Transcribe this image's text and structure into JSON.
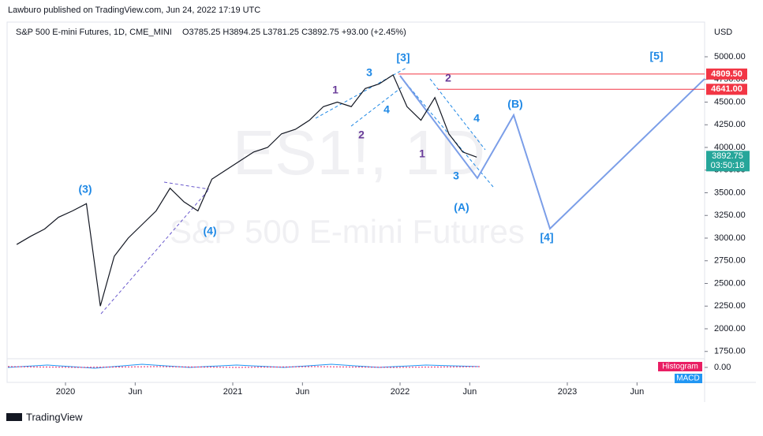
{
  "header": {
    "publisher": "Lawburo published on TradingView.com, Jun 24, 2022 17:19 UTC",
    "footer": "TradingView"
  },
  "chart_data": {
    "type": "line",
    "title": "S&P 500 E-mini Futures, 1D, CME_MINI",
    "ohlc_text": "O3785.25 H3894.25 L3781.25 C3892.75 +93.00 (+2.45%)",
    "watermark": [
      "ES1!, 1D",
      "S&P 500 E-mini Futures"
    ],
    "currency": "USD",
    "x": [
      "2019-09",
      "2019-10",
      "2019-11",
      "2019-12",
      "2020-01",
      "2020-02",
      "2020-03",
      "2020-04",
      "2020-05",
      "2020-06",
      "2020-07",
      "2020-08",
      "2020-09",
      "2020-10",
      "2020-11",
      "2020-12",
      "2021-01",
      "2021-02",
      "2021-03",
      "2021-04",
      "2021-05",
      "2021-06",
      "2021-07",
      "2021-08",
      "2021-09",
      "2021-10",
      "2021-11",
      "2021-12",
      "2022-01",
      "2022-02",
      "2022-03",
      "2022-04",
      "2022-05",
      "2022-06"
    ],
    "series": [
      {
        "name": "ES1!",
        "color": "#131722",
        "values": [
          2930,
          3020,
          3100,
          3230,
          3300,
          3380,
          2250,
          2800,
          3000,
          3150,
          3300,
          3550,
          3400,
          3300,
          3650,
          3750,
          3850,
          3950,
          4000,
          4150,
          4200,
          4300,
          4450,
          4500,
          4450,
          4650,
          4700,
          4800,
          4450,
          4300,
          4550,
          4150,
          3950,
          3892.75
        ]
      }
    ],
    "xticks": [
      {
        "value": "2020-01",
        "label": "2020"
      },
      {
        "value": "2020-06",
        "label": "Jun"
      },
      {
        "value": "2021-01",
        "label": "2021"
      },
      {
        "value": "2021-06",
        "label": "Jun"
      },
      {
        "value": "2022-01",
        "label": "2022"
      },
      {
        "value": "2022-06",
        "label": "Jun"
      },
      {
        "value": "2023-01",
        "label": "2023"
      },
      {
        "value": "2023-06",
        "label": "Jun"
      }
    ],
    "ylim": [
      1500,
      5250
    ],
    "yticks": [
      {
        "value": 1750,
        "label": "1750.00"
      },
      {
        "value": 2000,
        "label": "2000.00"
      },
      {
        "value": 2250,
        "label": "2250.00"
      },
      {
        "value": 2500,
        "label": "2500.00"
      },
      {
        "value": 2750,
        "label": "2750.00"
      },
      {
        "value": 3000,
        "label": "3000.00"
      },
      {
        "value": 3250,
        "label": "3250.00"
      },
      {
        "value": 3500,
        "label": "3500.00"
      },
      {
        "value": 3750,
        "label": "3750.00"
      },
      {
        "value": 4000,
        "label": "4000.00"
      },
      {
        "value": 4250,
        "label": "4250.00"
      },
      {
        "value": 4500,
        "label": "4500.00"
      },
      {
        "value": 4750,
        "label": "4750.00"
      },
      {
        "value": 5000,
        "label": "5000.00"
      }
    ],
    "levels": [
      {
        "value": 4809.5,
        "label": "4809.50",
        "color": "#f23645"
      },
      {
        "value": 4641,
        "label": "4641.00",
        "color": "#f23645"
      }
    ],
    "last_price": {
      "value": 3892.75,
      "label": "3892.75",
      "countdown": "03:50:18",
      "color": "#26a69a"
    },
    "annotations": [
      "(3)",
      "(4)",
      "[3]",
      "1",
      "3",
      "2",
      "4",
      "2",
      "1",
      "4",
      "3",
      "(A)",
      "(B)",
      "[4]",
      "[5]"
    ],
    "annotation_colors": [
      "#1e88e5",
      "#1e88e5",
      "#1e88e5",
      "#6a3d9a",
      "#1e88e5",
      "#6a3d9a",
      "#1e88e5",
      "#6a3d9a",
      "#6a3d9a",
      "#1e88e5",
      "#1e88e5",
      "#1e88e5",
      "#1e88e5",
      "#1e88e5",
      "#1e88e5"
    ],
    "macd": {
      "ytick": {
        "value": 0,
        "label": "0.00"
      },
      "labels": [
        "Histogram",
        "MACD"
      ]
    }
  }
}
